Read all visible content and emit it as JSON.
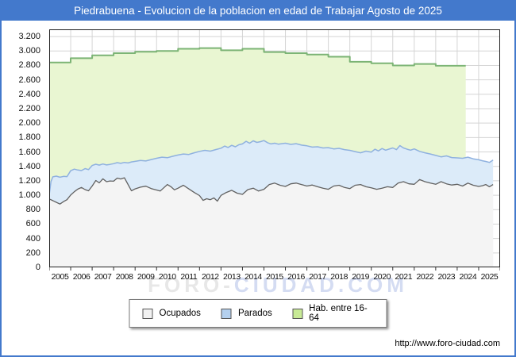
{
  "header": {
    "title": "Piedrabuena - Evolucion de la poblacion en edad de Trabajar Agosto de 2025",
    "bg_color": "#4379cc"
  },
  "footer": {
    "url": "http://www.foro-ciudad.com"
  },
  "watermark": {
    "part1": "FORO-",
    "part2": "CIUDAD.COM"
  },
  "legend": {
    "items": [
      {
        "label": "Ocupados",
        "color": "#f2f2f2"
      },
      {
        "label": "Parados",
        "color": "#b4d0ee"
      },
      {
        "label": "Hab. entre 16-64",
        "color": "#c8ea96"
      }
    ]
  },
  "chart_data": {
    "type": "area",
    "title": "Piedrabuena - Evolucion de la poblacion en edad de Trabajar Agosto de 2025",
    "xlabel": "",
    "ylabel": "",
    "x_range": [
      2005,
      2026
    ],
    "y_range": [
      0,
      3300
    ],
    "grid": true,
    "y_tick_step": 200,
    "y_tick_labels": [
      "0",
      "200",
      "400",
      "600",
      "800",
      "1.000",
      "1.200",
      "1.400",
      "1.600",
      "1.800",
      "2.000",
      "2.200",
      "2.400",
      "2.600",
      "2.800",
      "3.000",
      "3.200"
    ],
    "x_tick_labels": [
      "2005",
      "2006",
      "2007",
      "2008",
      "2009",
      "2010",
      "2011",
      "2012",
      "2013",
      "2014",
      "2015",
      "2016",
      "2017",
      "2018",
      "2019",
      "2020",
      "2021",
      "2022",
      "2023",
      "2024",
      "2025"
    ],
    "series": [
      {
        "name": "Hab. entre 16-64",
        "render": "step-annual",
        "start_year": 2005,
        "ends_at": 2024.4,
        "values": [
          2840,
          2900,
          2940,
          2970,
          2990,
          3000,
          3030,
          3040,
          3010,
          3030,
          2985,
          2970,
          2950,
          2920,
          2850,
          2830,
          2800,
          2820,
          2795,
          2795
        ],
        "fill": "#e9f6d2",
        "stroke": "#7cb475",
        "stroke_width": 2
      },
      {
        "name": "Parados",
        "render": "line-area",
        "points": [
          [
            2005.0,
            1005
          ],
          [
            2005.08,
            1190
          ],
          [
            2005.17,
            1255
          ],
          [
            2005.33,
            1265
          ],
          [
            2005.5,
            1250
          ],
          [
            2005.67,
            1262
          ],
          [
            2005.83,
            1258
          ],
          [
            2006.0,
            1340
          ],
          [
            2006.17,
            1362
          ],
          [
            2006.33,
            1350
          ],
          [
            2006.5,
            1342
          ],
          [
            2006.67,
            1370
          ],
          [
            2006.83,
            1355
          ],
          [
            2007.0,
            1412
          ],
          [
            2007.17,
            1430
          ],
          [
            2007.33,
            1418
          ],
          [
            2007.5,
            1433
          ],
          [
            2007.67,
            1420
          ],
          [
            2007.83,
            1428
          ],
          [
            2008.0,
            1438
          ],
          [
            2008.17,
            1452
          ],
          [
            2008.33,
            1442
          ],
          [
            2008.5,
            1455
          ],
          [
            2008.67,
            1448
          ],
          [
            2008.83,
            1462
          ],
          [
            2009.0,
            1470
          ],
          [
            2009.25,
            1482
          ],
          [
            2009.5,
            1475
          ],
          [
            2009.75,
            1495
          ],
          [
            2010.0,
            1512
          ],
          [
            2010.25,
            1528
          ],
          [
            2010.5,
            1520
          ],
          [
            2010.75,
            1540
          ],
          [
            2011.0,
            1558
          ],
          [
            2011.25,
            1572
          ],
          [
            2011.5,
            1565
          ],
          [
            2011.75,
            1588
          ],
          [
            2012.0,
            1608
          ],
          [
            2012.25,
            1622
          ],
          [
            2012.5,
            1612
          ],
          [
            2012.75,
            1632
          ],
          [
            2013.0,
            1652
          ],
          [
            2013.17,
            1682
          ],
          [
            2013.33,
            1662
          ],
          [
            2013.5,
            1692
          ],
          [
            2013.67,
            1672
          ],
          [
            2013.83,
            1700
          ],
          [
            2014.0,
            1712
          ],
          [
            2014.17,
            1748
          ],
          [
            2014.33,
            1722
          ],
          [
            2014.5,
            1755
          ],
          [
            2014.67,
            1732
          ],
          [
            2014.83,
            1742
          ],
          [
            2015.0,
            1758
          ],
          [
            2015.17,
            1728
          ],
          [
            2015.33,
            1712
          ],
          [
            2015.5,
            1722
          ],
          [
            2015.67,
            1708
          ],
          [
            2015.83,
            1715
          ],
          [
            2016.0,
            1722
          ],
          [
            2016.25,
            1705
          ],
          [
            2016.5,
            1715
          ],
          [
            2016.75,
            1695
          ],
          [
            2017.0,
            1685
          ],
          [
            2017.25,
            1668
          ],
          [
            2017.5,
            1672
          ],
          [
            2017.75,
            1655
          ],
          [
            2018.0,
            1660
          ],
          [
            2018.25,
            1642
          ],
          [
            2018.5,
            1650
          ],
          [
            2018.75,
            1632
          ],
          [
            2019.0,
            1622
          ],
          [
            2019.25,
            1605
          ],
          [
            2019.5,
            1588
          ],
          [
            2019.75,
            1612
          ],
          [
            2020.0,
            1598
          ],
          [
            2020.17,
            1638
          ],
          [
            2020.33,
            1615
          ],
          [
            2020.5,
            1648
          ],
          [
            2020.67,
            1625
          ],
          [
            2020.83,
            1640
          ],
          [
            2021.0,
            1655
          ],
          [
            2021.17,
            1632
          ],
          [
            2021.33,
            1688
          ],
          [
            2021.5,
            1655
          ],
          [
            2021.67,
            1638
          ],
          [
            2021.83,
            1625
          ],
          [
            2022.0,
            1642
          ],
          [
            2022.25,
            1608
          ],
          [
            2022.5,
            1588
          ],
          [
            2022.75,
            1572
          ],
          [
            2023.0,
            1552
          ],
          [
            2023.25,
            1532
          ],
          [
            2023.5,
            1545
          ],
          [
            2023.75,
            1522
          ],
          [
            2024.0,
            1518
          ],
          [
            2024.25,
            1512
          ],
          [
            2024.5,
            1528
          ],
          [
            2024.75,
            1505
          ],
          [
            2025.0,
            1492
          ],
          [
            2025.17,
            1478
          ],
          [
            2025.33,
            1468
          ],
          [
            2025.5,
            1455
          ],
          [
            2025.67,
            1488
          ]
        ],
        "fill": "#dcebf9",
        "stroke": "#8fb1df",
        "stroke_width": 1.5
      },
      {
        "name": "Ocupados",
        "render": "line-area",
        "points": [
          [
            2005.0,
            948
          ],
          [
            2005.17,
            925
          ],
          [
            2005.33,
            902
          ],
          [
            2005.5,
            878
          ],
          [
            2005.67,
            912
          ],
          [
            2005.83,
            938
          ],
          [
            2006.0,
            1002
          ],
          [
            2006.17,
            1048
          ],
          [
            2006.33,
            1085
          ],
          [
            2006.5,
            1108
          ],
          [
            2006.67,
            1078
          ],
          [
            2006.83,
            1062
          ],
          [
            2007.0,
            1128
          ],
          [
            2007.17,
            1205
          ],
          [
            2007.33,
            1172
          ],
          [
            2007.5,
            1228
          ],
          [
            2007.67,
            1188
          ],
          [
            2007.83,
            1198
          ],
          [
            2008.0,
            1195
          ],
          [
            2008.17,
            1238
          ],
          [
            2008.33,
            1225
          ],
          [
            2008.5,
            1242
          ],
          [
            2008.67,
            1148
          ],
          [
            2008.83,
            1062
          ],
          [
            2009.0,
            1088
          ],
          [
            2009.25,
            1112
          ],
          [
            2009.5,
            1125
          ],
          [
            2009.75,
            1092
          ],
          [
            2010.0,
            1072
          ],
          [
            2010.17,
            1058
          ],
          [
            2010.33,
            1102
          ],
          [
            2010.5,
            1148
          ],
          [
            2010.67,
            1118
          ],
          [
            2010.83,
            1075
          ],
          [
            2011.0,
            1098
          ],
          [
            2011.25,
            1138
          ],
          [
            2011.5,
            1088
          ],
          [
            2011.75,
            1038
          ],
          [
            2012.0,
            995
          ],
          [
            2012.17,
            928
          ],
          [
            2012.33,
            952
          ],
          [
            2012.5,
            938
          ],
          [
            2012.67,
            962
          ],
          [
            2012.83,
            918
          ],
          [
            2013.0,
            998
          ],
          [
            2013.25,
            1038
          ],
          [
            2013.5,
            1068
          ],
          [
            2013.75,
            1028
          ],
          [
            2014.0,
            1012
          ],
          [
            2014.25,
            1078
          ],
          [
            2014.5,
            1098
          ],
          [
            2014.75,
            1058
          ],
          [
            2015.0,
            1082
          ],
          [
            2015.25,
            1148
          ],
          [
            2015.5,
            1168
          ],
          [
            2015.75,
            1138
          ],
          [
            2016.0,
            1122
          ],
          [
            2016.25,
            1158
          ],
          [
            2016.5,
            1168
          ],
          [
            2016.75,
            1148
          ],
          [
            2017.0,
            1128
          ],
          [
            2017.25,
            1142
          ],
          [
            2017.5,
            1118
          ],
          [
            2017.75,
            1098
          ],
          [
            2018.0,
            1082
          ],
          [
            2018.25,
            1128
          ],
          [
            2018.5,
            1138
          ],
          [
            2018.75,
            1108
          ],
          [
            2019.0,
            1092
          ],
          [
            2019.25,
            1138
          ],
          [
            2019.5,
            1148
          ],
          [
            2019.75,
            1118
          ],
          [
            2020.0,
            1102
          ],
          [
            2020.25,
            1082
          ],
          [
            2020.5,
            1098
          ],
          [
            2020.75,
            1118
          ],
          [
            2021.0,
            1108
          ],
          [
            2021.25,
            1168
          ],
          [
            2021.5,
            1188
          ],
          [
            2021.75,
            1158
          ],
          [
            2022.0,
            1152
          ],
          [
            2022.25,
            1218
          ],
          [
            2022.5,
            1188
          ],
          [
            2022.75,
            1168
          ],
          [
            2023.0,
            1152
          ],
          [
            2023.25,
            1188
          ],
          [
            2023.5,
            1158
          ],
          [
            2023.75,
            1142
          ],
          [
            2024.0,
            1152
          ],
          [
            2024.25,
            1128
          ],
          [
            2024.5,
            1168
          ],
          [
            2024.75,
            1138
          ],
          [
            2025.0,
            1122
          ],
          [
            2025.17,
            1132
          ],
          [
            2025.33,
            1148
          ],
          [
            2025.5,
            1118
          ],
          [
            2025.67,
            1148
          ]
        ],
        "fill": "#f4f4f4",
        "stroke": "#616161",
        "stroke_width": 1.3
      }
    ]
  }
}
